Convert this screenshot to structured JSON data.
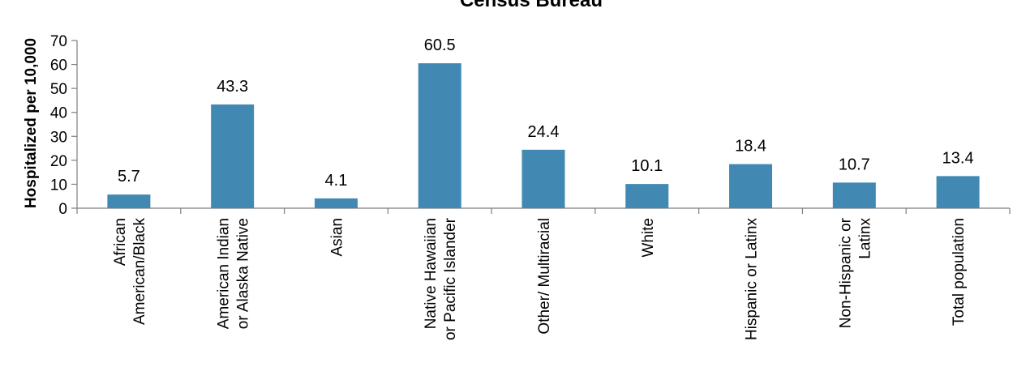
{
  "chart_data": {
    "type": "bar",
    "title": "Census Bureau",
    "ylabel": "Hospitalized per 10,000",
    "xlabel": "",
    "ylim": [
      0,
      70
    ],
    "yticks": [
      0,
      10,
      20,
      30,
      40,
      50,
      60,
      70
    ],
    "grid": false,
    "legend": "none",
    "categories": [
      [
        "African",
        "American/Black"
      ],
      [
        "American Indian",
        "or Alaska Native"
      ],
      [
        "Asian"
      ],
      [
        "Native Hawaiian",
        "or Pacific Islander"
      ],
      [
        "Other/ Multiracial"
      ],
      [
        "White"
      ],
      [
        "Hispanic or Latinx"
      ],
      [
        "Non-Hispanic or",
        "Latinx"
      ],
      [
        "Total population"
      ]
    ],
    "values": [
      5.7,
      43.3,
      4.1,
      60.5,
      24.4,
      10.1,
      18.4,
      10.7,
      13.4
    ],
    "data_labels": [
      "5.7",
      "43.3",
      "4.1",
      "60.5",
      "24.4",
      "10.1",
      "18.4",
      "10.7",
      "13.4"
    ],
    "bar_color": "#4189B3",
    "axis_color": "#7f7f7f"
  }
}
